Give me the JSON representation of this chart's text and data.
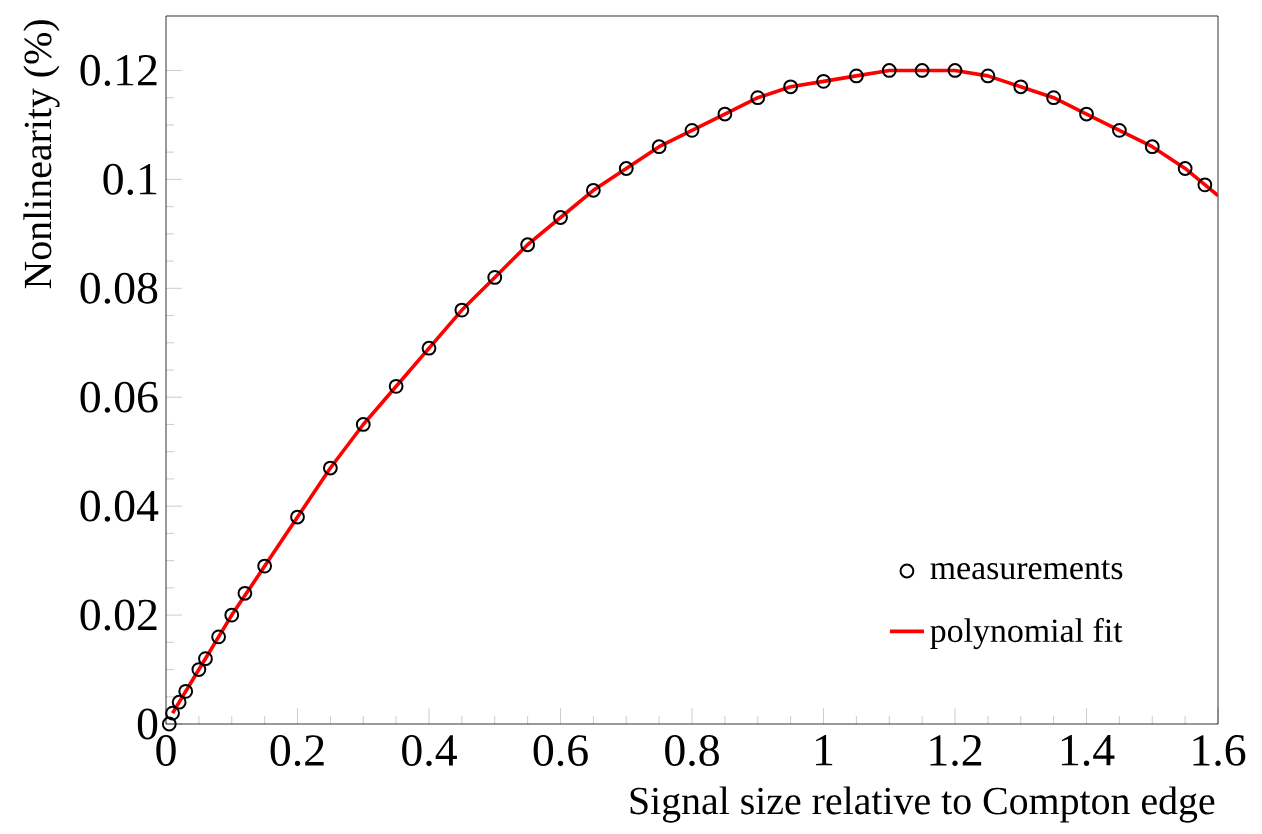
{
  "chart_data": {
    "type": "scatter",
    "xlabel": "Signal size relative to Compton edge",
    "ylabel": "Nonlinearity  (%)",
    "xlim": [
      0,
      1.6
    ],
    "ylim": [
      0,
      0.13
    ],
    "xticks": [
      0,
      0.2,
      0.4,
      0.6,
      0.8,
      1,
      1.2,
      1.4,
      1.6
    ],
    "yticks": [
      0,
      0.02,
      0.04,
      0.06,
      0.08,
      0.1,
      0.12
    ],
    "grid": false,
    "legend": "bottom right",
    "series": [
      {
        "name": "measurements",
        "marker": "circle",
        "color": "#000000",
        "x": [
          0.005,
          0.01,
          0.02,
          0.03,
          0.05,
          0.06,
          0.08,
          0.1,
          0.12,
          0.15,
          0.2,
          0.25,
          0.3,
          0.35,
          0.4,
          0.45,
          0.5,
          0.55,
          0.6,
          0.65,
          0.7,
          0.75,
          0.8,
          0.85,
          0.9,
          0.95,
          1.0,
          1.05,
          1.1,
          1.15,
          1.2,
          1.25,
          1.3,
          1.35,
          1.4,
          1.45,
          1.5,
          1.55,
          1.58
        ],
        "values": [
          0.0,
          0.002,
          0.004,
          0.006,
          0.01,
          0.012,
          0.016,
          0.02,
          0.024,
          0.029,
          0.038,
          0.047,
          0.055,
          0.062,
          0.069,
          0.076,
          0.082,
          0.088,
          0.093,
          0.098,
          0.102,
          0.106,
          0.109,
          0.112,
          0.115,
          0.117,
          0.118,
          0.119,
          0.12,
          0.12,
          0.12,
          0.119,
          0.117,
          0.115,
          0.112,
          0.109,
          0.106,
          0.102,
          0.099
        ]
      },
      {
        "name": "polynomial fit",
        "type": "line",
        "marker": "none",
        "line_style": "solid",
        "color": "#ff0000",
        "x": [
          0.01,
          0.05,
          0.1,
          0.15,
          0.2,
          0.25,
          0.3,
          0.35,
          0.4,
          0.45,
          0.5,
          0.55,
          0.6,
          0.65,
          0.7,
          0.75,
          0.8,
          0.85,
          0.9,
          0.95,
          1.0,
          1.05,
          1.1,
          1.15,
          1.2,
          1.25,
          1.3,
          1.35,
          1.4,
          1.45,
          1.5,
          1.55,
          1.6
        ],
        "values": [
          0.002,
          0.01,
          0.02,
          0.029,
          0.038,
          0.047,
          0.055,
          0.062,
          0.069,
          0.076,
          0.082,
          0.088,
          0.093,
          0.098,
          0.102,
          0.106,
          0.109,
          0.112,
          0.115,
          0.117,
          0.118,
          0.119,
          0.12,
          0.12,
          0.12,
          0.119,
          0.117,
          0.115,
          0.112,
          0.109,
          0.106,
          0.102,
          0.097
        ]
      }
    ]
  }
}
